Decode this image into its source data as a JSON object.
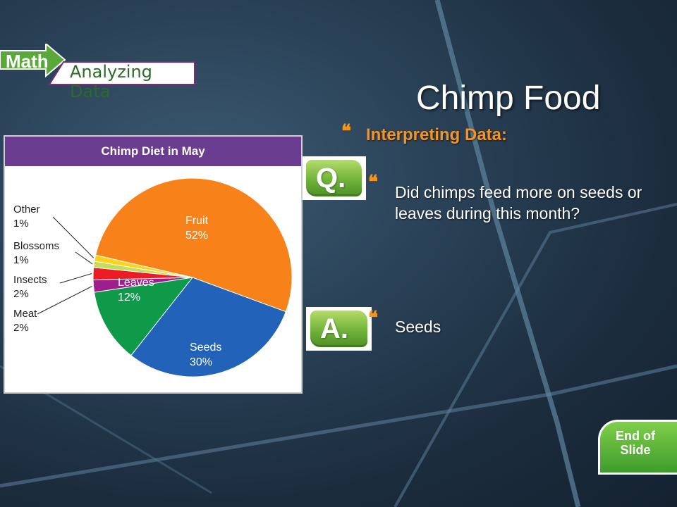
{
  "banner": {
    "math_label": "Math",
    "sub_label": "Analyzing Data"
  },
  "slide": {
    "title": "Chimp Food",
    "heading": "Interpreting Data:",
    "question": "Did chimps feed more on seeds or leaves during this month?",
    "answer": "Seeds",
    "q_badge": "Q.",
    "a_badge": "A.",
    "end_label": "End of\nSlide"
  },
  "colors": {
    "accent_orange": "#f7941d",
    "chart_header": "#6a3d91",
    "badge_green": "#6fb33a"
  },
  "chart_data": {
    "type": "pie",
    "title": "Chimp Diet in May",
    "slices": [
      {
        "name": "Fruit",
        "value": 52,
        "label": "52%",
        "color": "#f7821a"
      },
      {
        "name": "Seeds",
        "value": 30,
        "label": "30%",
        "color": "#2262b8"
      },
      {
        "name": "Leaves",
        "value": 12,
        "label": "12%",
        "color": "#0f9a4a"
      },
      {
        "name": "Meat",
        "value": 2,
        "label": "2%",
        "color": "#9c1f8c"
      },
      {
        "name": "Insects",
        "value": 2,
        "label": "2%",
        "color": "#ec1c24"
      },
      {
        "name": "Blossoms",
        "value": 1,
        "label": "1%",
        "color": "#c7dc5a"
      },
      {
        "name": "Other",
        "value": 1,
        "label": "1%",
        "color": "#ffd21a"
      }
    ]
  }
}
